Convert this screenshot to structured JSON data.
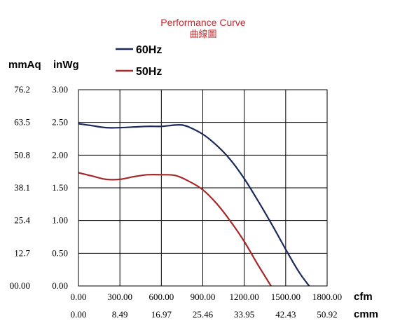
{
  "chart_data": {
    "type": "line",
    "title": "Performance Curve",
    "subtitle": "曲線圖",
    "title_color": "#c0282d",
    "y_unit_left": "mmAq",
    "y_unit_right": "inWg",
    "x_unit_top": "cfm",
    "x_unit_bottom": "cmm",
    "xlim": [
      0,
      1800
    ],
    "ylim": [
      0,
      3.0
    ],
    "grid": true,
    "legend_position": "top-left",
    "x_ticks_cfm": [
      "0.00",
      "300.00",
      "600.00",
      "900.00",
      "1200.00",
      "1500.00",
      "1800.00"
    ],
    "x_ticks_cmm": [
      "0.00",
      "8.49",
      "16.97",
      "25.46",
      "33.95",
      "42.43",
      "50.92"
    ],
    "y_ticks_inwg": [
      "0.00",
      "0.50",
      "1.00",
      "1.50",
      "2.00",
      "2.50",
      "3.00"
    ],
    "y_ticks_mmaq": [
      "00.00",
      "12.7",
      "25.4",
      "38.1",
      "50.8",
      "63.5",
      "76.2"
    ],
    "series": [
      {
        "name": "60Hz",
        "color": "#1b2a5a",
        "x": [
          0,
          100,
          200,
          300,
          400,
          500,
          600,
          700,
          750,
          800,
          900,
          1000,
          1100,
          1200,
          1300,
          1400,
          1500,
          1600,
          1700
        ],
        "y": [
          2.48,
          2.45,
          2.42,
          2.42,
          2.43,
          2.44,
          2.44,
          2.46,
          2.46,
          2.43,
          2.32,
          2.15,
          1.93,
          1.64,
          1.3,
          0.94,
          0.56,
          0.2,
          -0.08
        ]
      },
      {
        "name": "50Hz",
        "color": "#a5282a",
        "x": [
          0,
          100,
          200,
          300,
          400,
          500,
          600,
          700,
          800,
          900,
          1000,
          1100,
          1200,
          1300,
          1400,
          1430
        ],
        "y": [
          1.73,
          1.68,
          1.63,
          1.63,
          1.67,
          1.7,
          1.7,
          1.69,
          1.6,
          1.47,
          1.26,
          0.99,
          0.68,
          0.32,
          -0.02,
          -0.12
        ]
      }
    ]
  }
}
